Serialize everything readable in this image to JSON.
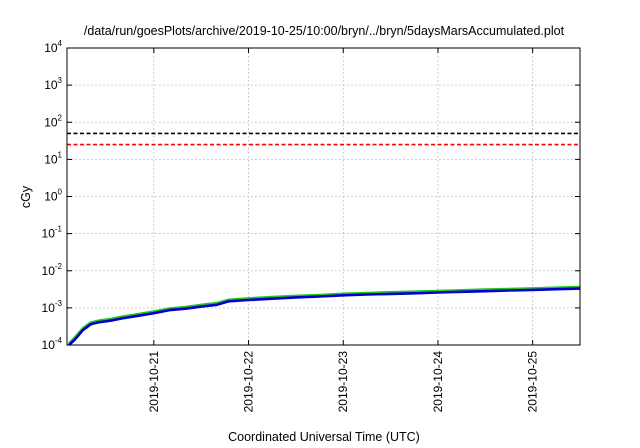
{
  "chart_data": {
    "type": "line",
    "title": "/data/run/goesPlots/archive/2019-10-25/10:00/bryn/../bryn/5daysMarsAccumulated.plot",
    "xlabel": "Coordinated Universal Time (UTC)",
    "ylabel": "cGy",
    "y_scale": "log",
    "ylim": [
      0.0001,
      10000
    ],
    "xlim": [
      "2019-10-20T02:00",
      "2019-10-25T12:00"
    ],
    "grid": true,
    "y_ticks": [
      {
        "value": 0.0001,
        "base": "10",
        "exp": "-4"
      },
      {
        "value": 0.001,
        "base": "10",
        "exp": "-3"
      },
      {
        "value": 0.01,
        "base": "10",
        "exp": "-2"
      },
      {
        "value": 0.1,
        "base": "10",
        "exp": "-1"
      },
      {
        "value": 1,
        "base": "10",
        "exp": "0"
      },
      {
        "value": 10,
        "base": "10",
        "exp": "1"
      },
      {
        "value": 100,
        "base": "10",
        "exp": "2"
      },
      {
        "value": 1000,
        "base": "10",
        "exp": "3"
      },
      {
        "value": 10000,
        "base": "10",
        "exp": "4"
      }
    ],
    "x_ticks": [
      "2019-10-21",
      "2019-10-22",
      "2019-10-23",
      "2019-10-24",
      "2019-10-25"
    ],
    "reference_lines": [
      {
        "value": 50,
        "color": "#000000",
        "style": "dashed"
      },
      {
        "value": 25,
        "color": "#ff0000",
        "style": "dashed"
      }
    ],
    "series": [
      {
        "color": "#22c822",
        "x": [
          "2019-10-20T02:30",
          "2019-10-20T04:00",
          "2019-10-20T06:00",
          "2019-10-20T08:00",
          "2019-10-20T10:00",
          "2019-10-20T13:00",
          "2019-10-20T16:00",
          "2019-10-20T20:00",
          "2019-10-21T00:00",
          "2019-10-21T04:00",
          "2019-10-21T08:00",
          "2019-10-21T12:00",
          "2019-10-21T16:00",
          "2019-10-21T19:00",
          "2019-10-22T00:00",
          "2019-10-22T06:00",
          "2019-10-22T12:00",
          "2019-10-22T18:00",
          "2019-10-23T00:00",
          "2019-10-23T06:00",
          "2019-10-23T12:00",
          "2019-10-23T18:00",
          "2019-10-24T00:00",
          "2019-10-24T06:00",
          "2019-10-24T12:00",
          "2019-10-24T18:00",
          "2019-10-25T00:00",
          "2019-10-25T06:00",
          "2019-10-25T12:00"
        ],
        "y": [
          0.00011,
          0.00016,
          0.00028,
          0.0004,
          0.00045,
          0.0005,
          0.00058,
          0.00068,
          0.0008,
          0.00096,
          0.00105,
          0.0012,
          0.00135,
          0.00165,
          0.0018,
          0.00195,
          0.0021,
          0.00222,
          0.0024,
          0.00252,
          0.00262,
          0.00272,
          0.00285,
          0.00298,
          0.0031,
          0.00322,
          0.00335,
          0.0035,
          0.00365
        ]
      },
      {
        "color": "#0000cc",
        "x": [
          "2019-10-20T02:30",
          "2019-10-20T04:00",
          "2019-10-20T06:00",
          "2019-10-20T08:00",
          "2019-10-20T10:00",
          "2019-10-20T13:00",
          "2019-10-20T16:00",
          "2019-10-20T20:00",
          "2019-10-21T00:00",
          "2019-10-21T04:00",
          "2019-10-21T08:00",
          "2019-10-21T12:00",
          "2019-10-21T16:00",
          "2019-10-21T19:00",
          "2019-10-22T00:00",
          "2019-10-22T06:00",
          "2019-10-22T12:00",
          "2019-10-22T18:00",
          "2019-10-23T00:00",
          "2019-10-23T06:00",
          "2019-10-23T12:00",
          "2019-10-23T18:00",
          "2019-10-24T00:00",
          "2019-10-24T06:00",
          "2019-10-24T12:00",
          "2019-10-24T18:00",
          "2019-10-25T00:00",
          "2019-10-25T06:00",
          "2019-10-25T12:00"
        ],
        "y": [
          0.0001,
          0.00014,
          0.00025,
          0.00036,
          0.00041,
          0.00045,
          0.00052,
          0.00061,
          0.00072,
          0.00087,
          0.00095,
          0.00108,
          0.00121,
          0.0015,
          0.00163,
          0.00177,
          0.00191,
          0.00202,
          0.00218,
          0.00229,
          0.00238,
          0.00247,
          0.00259,
          0.00271,
          0.00282,
          0.00293,
          0.00305,
          0.00318,
          0.0033
        ]
      }
    ]
  }
}
